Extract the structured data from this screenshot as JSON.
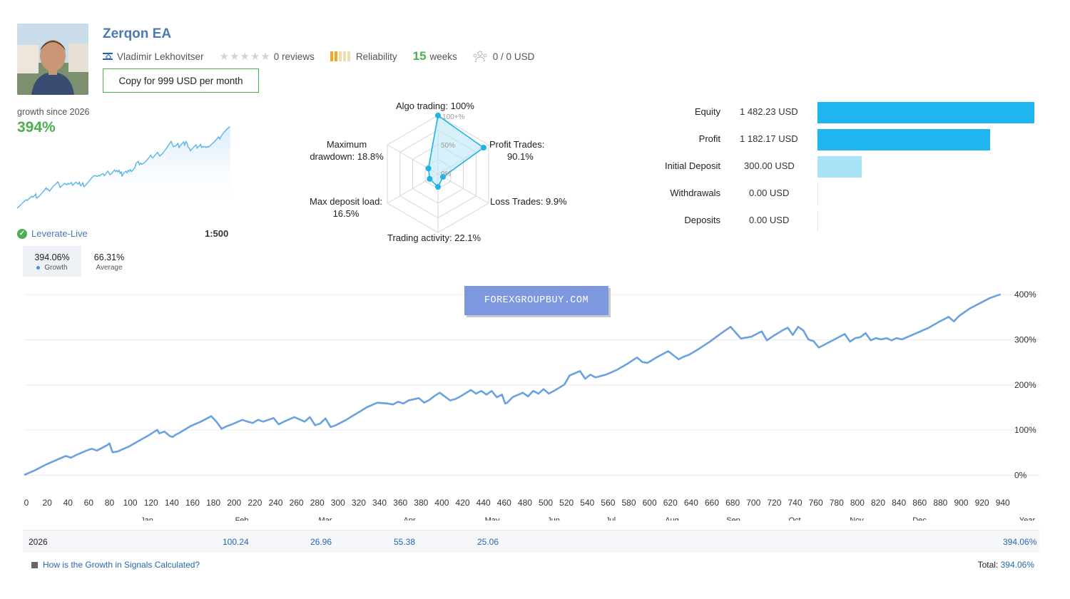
{
  "header": {
    "title": "Zerqon EA",
    "author": "Vladimir Lekhovitser",
    "reviews": "0 reviews",
    "reliability": "Reliability",
    "weeks_num": "15",
    "weeks_label": "weeks",
    "subscribers": "0 / 0 USD",
    "copy_button": "Copy for 999 USD per month",
    "reliability_level": 0.4
  },
  "growth": {
    "label": "growth since 2026",
    "value": "394%",
    "broker": "Leverate-Live",
    "leverage": "1:500",
    "tabs": [
      {
        "value": "394.06%",
        "label": "Growth"
      },
      {
        "value": "66.31%",
        "label": "Average"
      }
    ]
  },
  "radar": {
    "labels": {
      "algo": "Algo trading: 100%",
      "profit_1": "Profit Trades:",
      "profit_2": "90.1%",
      "loss": "Loss Trades: 9.9%",
      "activity": "Trading activity: 22.1%",
      "load_1": "Max deposit load:",
      "load_2": "16.5%",
      "drawdown_1": "Maximum",
      "drawdown_2": "drawdown: 18.8%"
    },
    "scale": [
      "100+%",
      "50%",
      "0%"
    ],
    "values": [
      1.0,
      0.901,
      0.099,
      0.221,
      0.165,
      0.188
    ]
  },
  "stats": [
    {
      "label": "Equity",
      "value": "1 482.23 USD",
      "amount": 1482.23,
      "color": "#1fb6ef"
    },
    {
      "label": "Profit",
      "value": "1 182.17 USD",
      "amount": 1182.17,
      "color": "#1fb6ef"
    },
    {
      "label": "Initial Deposit",
      "value": "300.00 USD",
      "amount": 300.0,
      "color": "#a9e3f8"
    },
    {
      "label": "Withdrawals",
      "value": "0.00 USD",
      "amount": 0,
      "color": "#a9e3f8"
    },
    {
      "label": "Deposits",
      "value": "0.00 USD",
      "amount": 0,
      "color": "#a9e3f8"
    }
  ],
  "watermark": "FOREXGROUPBUY.COM",
  "chart_data": {
    "type": "line",
    "xlabel": "",
    "ylabel": "",
    "x_ticks": [
      0,
      20,
      40,
      60,
      80,
      100,
      120,
      140,
      160,
      180,
      200,
      220,
      240,
      260,
      280,
      300,
      320,
      340,
      360,
      380,
      400,
      420,
      440,
      460,
      480,
      500,
      520,
      540,
      560,
      580,
      600,
      620,
      640,
      660,
      680,
      700,
      720,
      740,
      760,
      780,
      800,
      820,
      840,
      860,
      880,
      900,
      920,
      940
    ],
    "y_ticks": [
      "0%",
      "100%",
      "200%",
      "300%",
      "400%"
    ],
    "xlim": [
      0,
      945
    ],
    "ylim": [
      0,
      420
    ],
    "months": [
      "Jan",
      "Feb",
      "Mar",
      "Apr",
      "May",
      "Jun",
      "Jul",
      "Aug",
      "Sep",
      "Oct",
      "Nov",
      "Dec"
    ],
    "year_label": "Year",
    "series": [
      {
        "color": "#6aa1e0",
        "x": [
          0,
          10,
          20,
          30,
          40,
          45,
          50,
          60,
          65,
          70,
          80,
          82,
          85,
          90,
          100,
          110,
          120,
          128,
          130,
          135,
          140,
          143,
          145,
          150,
          160,
          170,
          180,
          185,
          190,
          195,
          200,
          210,
          215,
          220,
          225,
          230,
          240,
          245,
          250,
          260,
          270,
          275,
          280,
          285,
          290,
          295,
          300,
          310,
          320,
          330,
          340,
          350,
          355,
          360,
          365,
          370,
          380,
          385,
          390,
          395,
          400,
          410,
          415,
          420,
          430,
          435,
          440,
          445,
          450,
          455,
          460,
          463,
          465,
          470,
          480,
          485,
          490,
          495,
          500,
          505,
          510,
          520,
          525,
          530,
          535,
          540,
          545,
          550,
          560,
          570,
          580,
          590,
          595,
          600,
          610,
          620,
          630,
          635,
          640,
          650,
          660,
          670,
          680,
          690,
          700,
          705,
          710,
          715,
          720,
          730,
          735,
          740,
          745,
          750,
          755,
          760,
          765,
          770,
          780,
          790,
          795,
          800,
          805,
          810,
          815,
          820,
          825,
          830,
          835,
          840,
          845,
          850,
          855,
          860,
          870,
          880,
          890,
          895,
          900,
          910,
          920,
          930,
          940
        ],
        "y": [
          0,
          10,
          22,
          32,
          42,
          38,
          44,
          54,
          58,
          54,
          66,
          70,
          50,
          52,
          62,
          75,
          88,
          100,
          92,
          96,
          86,
          84,
          88,
          94,
          108,
          118,
          130,
          118,
          102,
          108,
          112,
          122,
          118,
          115,
          122,
          118,
          126,
          112,
          118,
          128,
          118,
          128,
          110,
          114,
          125,
          106,
          110,
          122,
          136,
          150,
          160,
          158,
          156,
          162,
          158,
          165,
          170,
          160,
          166,
          175,
          182,
          165,
          168,
          174,
          188,
          180,
          186,
          178,
          186,
          172,
          178,
          158,
          160,
          172,
          182,
          174,
          186,
          180,
          190,
          180,
          186,
          200,
          220,
          225,
          230,
          213,
          222,
          216,
          222,
          232,
          245,
          260,
          250,
          248,
          262,
          274,
          256,
          262,
          266,
          280,
          295,
          312,
          328,
          302,
          306,
          312,
          318,
          298,
          306,
          320,
          326,
          310,
          328,
          320,
          300,
          296,
          282,
          288,
          300,
          312,
          295,
          303,
          305,
          314,
          298,
          303,
          300,
          303,
          298,
          303,
          300,
          305,
          310,
          315,
          325,
          338,
          350,
          340,
          352,
          368,
          380,
          392,
          400
        ]
      }
    ],
    "table": {
      "year": "2026",
      "values": [
        "100.24",
        "26.96",
        "55.38",
        "25.06"
      ],
      "year_total": "394.06%"
    }
  },
  "footer": {
    "link": "How is the Growth in Signals Calculated?",
    "total_label": "Total:",
    "total_value": "394.06%"
  }
}
